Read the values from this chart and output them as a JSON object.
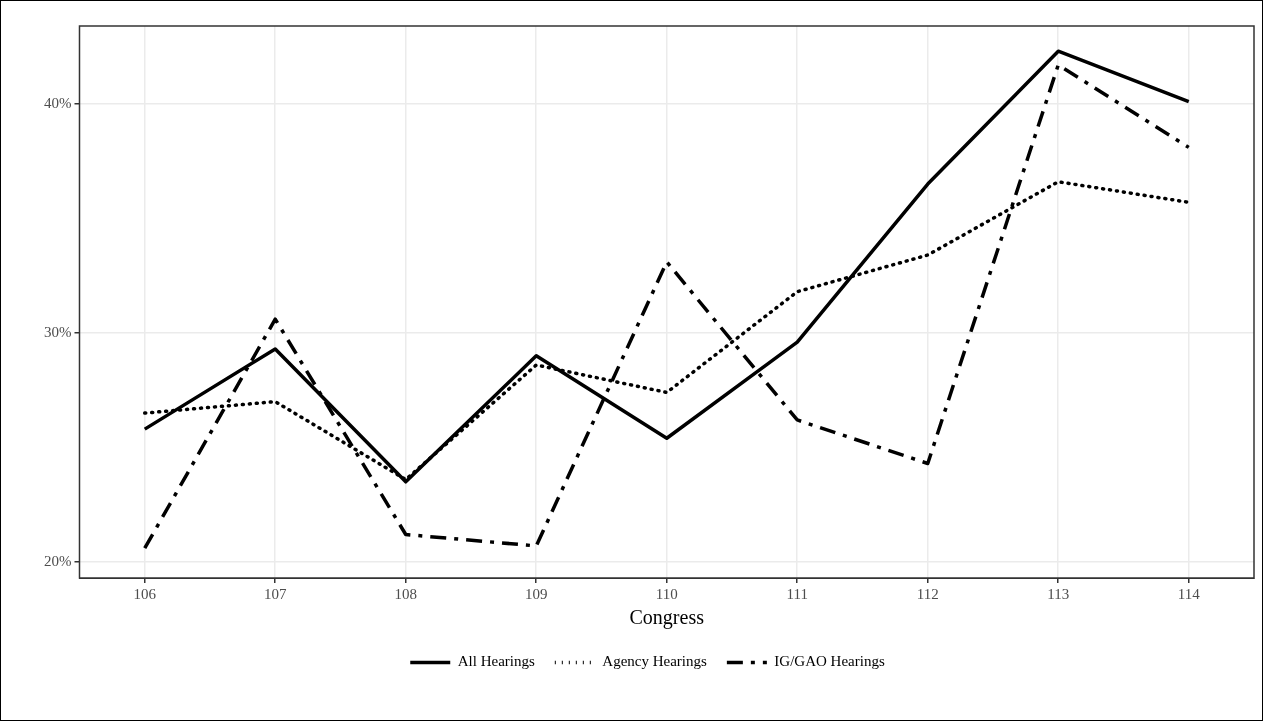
{
  "chart_data": {
    "type": "line",
    "xlabel": "Congress",
    "categories": [
      "106",
      "107",
      "108",
      "109",
      "110",
      "111",
      "112",
      "113",
      "114"
    ],
    "series": [
      {
        "name": "All Hearings",
        "color": "#000000",
        "line_style": "solid",
        "values": [
          25.8,
          29.3,
          23.5,
          29.0,
          25.4,
          29.6,
          36.5,
          42.3,
          40.1
        ]
      },
      {
        "name": "Agency Hearings",
        "color": "#000000",
        "line_style": "dotted",
        "values": [
          26.5,
          27.0,
          23.6,
          28.6,
          27.4,
          31.8,
          33.4,
          36.6,
          35.7
        ]
      },
      {
        "name": "IG/GAO Hearings",
        "color": "#000000",
        "line_style": "dashed",
        "values": [
          20.6,
          30.6,
          21.2,
          20.7,
          33.1,
          26.2,
          24.3,
          41.7,
          38.1
        ]
      }
    ],
    "ylim": [
      19.3,
      43.4
    ],
    "yticks": [
      {
        "value": 20,
        "label": "20%"
      },
      {
        "value": 30,
        "label": "30%"
      },
      {
        "value": 40,
        "label": "40%"
      }
    ],
    "grid": true,
    "legend": "bottom",
    "marker": "none"
  }
}
